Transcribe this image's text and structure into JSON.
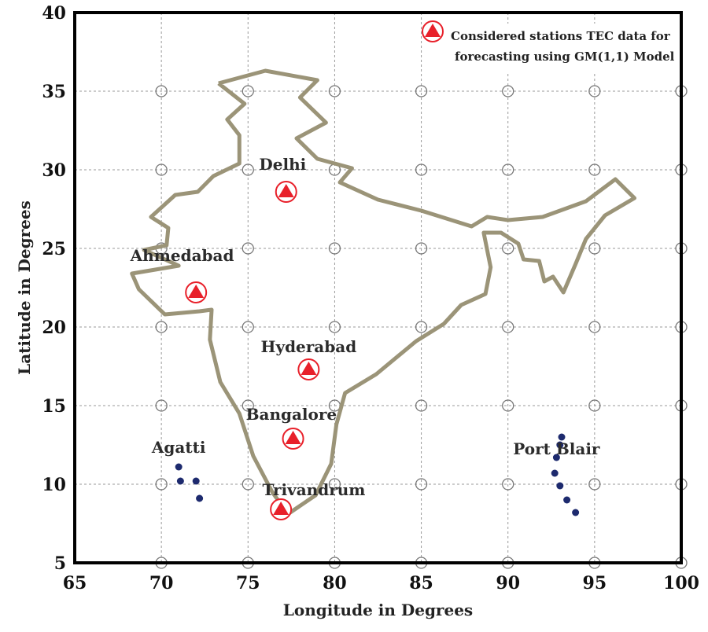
{
  "chart_data": {
    "type": "scatter",
    "xlabel": "Longitude in Degrees",
    "ylabel": "Latitude in Degrees",
    "xlim": [
      65,
      100
    ],
    "ylim": [
      5,
      40
    ],
    "xticks": [
      65,
      70,
      75,
      80,
      85,
      90,
      95,
      100
    ],
    "yticks": [
      5,
      10,
      15,
      20,
      25,
      30,
      35,
      40
    ],
    "x_tick_labels": [
      "65",
      "70",
      "75",
      "80",
      "85",
      "90",
      "95",
      "100"
    ],
    "y_tick_labels": [
      "5",
      "10",
      "15",
      "20",
      "25",
      "30",
      "35",
      "40"
    ],
    "grid": true,
    "legend": {
      "line1": "Considered stations TEC data for",
      "line2": "forecasting using GM(1,1) Model",
      "placement": "top-right"
    },
    "stations": [
      {
        "name": "Delhi",
        "lon": 77.2,
        "lat": 28.6
      },
      {
        "name": "Ahmedabad",
        "lon": 72.0,
        "lat": 22.2
      },
      {
        "name": "Hyderabad",
        "lon": 78.5,
        "lat": 17.3
      },
      {
        "name": "Bangalore",
        "lon": 77.6,
        "lat": 12.9
      },
      {
        "name": "Trivandrum",
        "lon": 76.9,
        "lat": 8.4
      }
    ],
    "labels": [
      {
        "text": "Delhi",
        "lon": 77.0,
        "lat": 30.0
      },
      {
        "text": "Ahmedabad",
        "lon": 71.2,
        "lat": 24.2
      },
      {
        "text": "Hyderabad",
        "lon": 78.5,
        "lat": 18.4
      },
      {
        "text": "Bangalore",
        "lon": 77.5,
        "lat": 14.1
      },
      {
        "text": "Trivandrum",
        "lon": 78.8,
        "lat": 9.3
      },
      {
        "text": "Agatti",
        "lon": 71.0,
        "lat": 12.0
      },
      {
        "text": "Port Blair",
        "lon": 92.8,
        "lat": 11.9
      }
    ],
    "colors": {
      "marker_fill": "#e8202a",
      "marker_ring": "#e8202a",
      "outline": "#9b9478",
      "islands": "#1d2a6e"
    }
  }
}
